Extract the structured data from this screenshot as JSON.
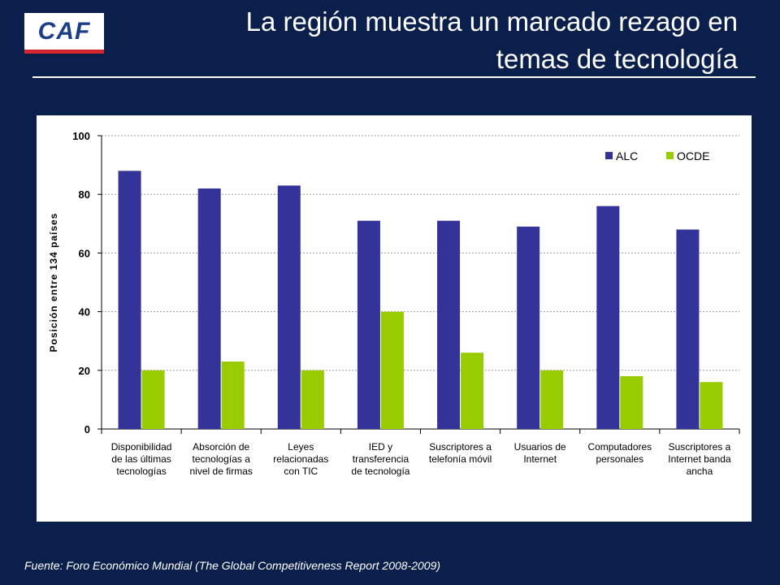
{
  "logo": {
    "text": "CAF"
  },
  "header": {
    "title_line1": "La región muestra un marcado rezago en",
    "title_line2": "temas de tecnología"
  },
  "footer": {
    "source": "Fuente: Foro Económico Mundial (The Global Competitiveness Report  2008-2009)"
  },
  "colors": {
    "alc": "#333399",
    "ocde": "#99cc00"
  },
  "chart_data": {
    "type": "bar",
    "title": "",
    "xlabel": "",
    "ylabel": "Posición entre 134 países",
    "ylim": [
      0,
      100
    ],
    "yticks": [
      0,
      20,
      40,
      60,
      80,
      100
    ],
    "grid": true,
    "legend_position": "top-right",
    "categories": [
      [
        "Disponibilidad",
        "de las últimas",
        "tecnologías"
      ],
      [
        "Absorción de",
        "tecnologías a",
        "nivel de firmas"
      ],
      [
        "Leyes",
        "relacionadas",
        "con TIC"
      ],
      [
        "IED y",
        "transferencia",
        "de tecnología"
      ],
      [
        "Suscriptores a",
        "telefonía móvil"
      ],
      [
        "Usuarios de",
        "Internet"
      ],
      [
        "Computadores",
        "personales"
      ],
      [
        "Suscriptores a",
        "Internet banda",
        "ancha"
      ]
    ],
    "series": [
      {
        "name": "ALC",
        "values": [
          88,
          82,
          83,
          71,
          71,
          69,
          76,
          68
        ]
      },
      {
        "name": "OCDE",
        "values": [
          20,
          23,
          20,
          40,
          26,
          20,
          18,
          16
        ]
      }
    ]
  }
}
